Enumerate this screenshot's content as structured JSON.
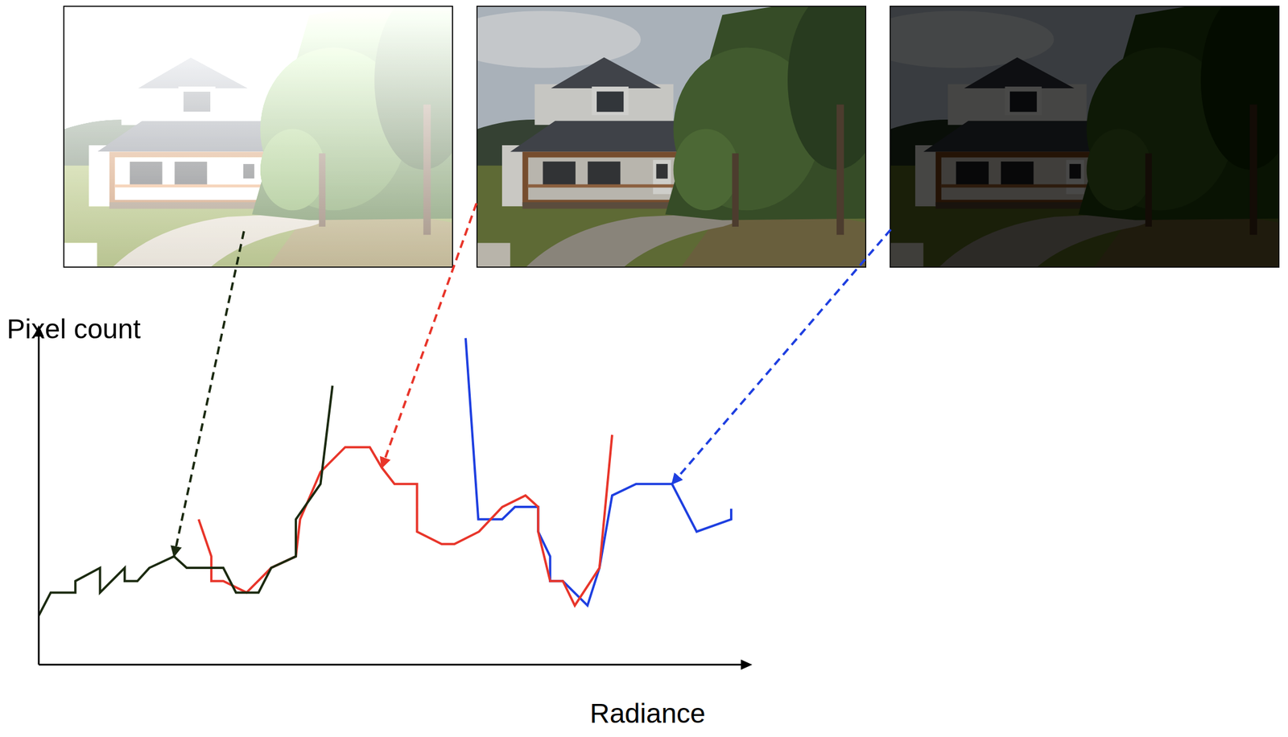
{
  "chart_data": {
    "type": "line",
    "x_label": "Radiance",
    "y_label": "Pixel count",
    "xlim": [
      0,
      100
    ],
    "ylim": [
      0,
      115
    ],
    "xticks": [],
    "yticks": [],
    "tick_labels": false,
    "grid": false,
    "series": [
      {
        "color": "#1b2a10",
        "x": [
          0,
          1.7,
          3.5,
          5.2,
          5.2,
          8.7,
          8.7,
          12.2,
          12.2,
          14,
          15.7,
          19.2,
          21,
          24.5,
          26.2,
          28,
          31.2,
          33,
          36.5,
          36.5,
          40,
          41.7
        ],
        "values": [
          17.1,
          25.1,
          25.1,
          25.1,
          29.1,
          33.7,
          25.1,
          33.7,
          29.1,
          29.1,
          33.7,
          37.7,
          33.7,
          33.7,
          33.7,
          25.1,
          25.1,
          33.7,
          37.7,
          50.6,
          62.9,
          97.1
        ]
      },
      {
        "color": "#e8352a",
        "x": [
          22.7,
          24.5,
          24.5,
          26.2,
          29.5,
          33,
          36.5,
          37.1,
          40,
          43.5,
          47,
          48.7,
          50.5,
          53.7,
          53.7,
          57.2,
          59,
          62.5,
          65.8,
          69.1,
          70.9,
          70.9,
          72.6,
          74.4,
          76.1,
          79.6,
          81.4
        ],
        "values": [
          50.6,
          37.7,
          29.1,
          29.1,
          25.1,
          33.7,
          37.7,
          50.6,
          67.1,
          75.7,
          75.7,
          68.6,
          62.9,
          62.9,
          46.3,
          42,
          42,
          46.3,
          54.9,
          58.9,
          54.9,
          46.3,
          29.1,
          29.1,
          20.6,
          33.7,
          80
        ]
      },
      {
        "color": "#1e3fe0",
        "x": [
          60.6,
          62.4,
          65.8,
          67.6,
          70.9,
          70.9,
          72.6,
          72.6,
          74.4,
          77.9,
          79.6,
          81.4,
          84.8,
          89.9,
          93.4,
          98.3,
          98.3
        ],
        "values": [
          113.7,
          50.6,
          50.6,
          54.9,
          54.9,
          46.3,
          37.7,
          29.1,
          29.1,
          20.6,
          33.7,
          58.9,
          62.9,
          62.9,
          46.3,
          50.6,
          54.3
        ]
      }
    ]
  }
}
